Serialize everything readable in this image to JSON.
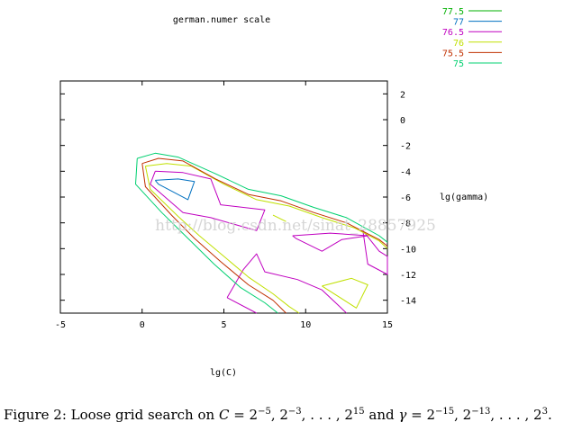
{
  "chart_data": {
    "type": "contour",
    "title": "german.numer scale",
    "xlabel": "lg(C)",
    "ylabel": "lg(gamma)",
    "xlim": [
      -5,
      15
    ],
    "ylim": [
      -15,
      3
    ],
    "x_ticks": [
      "-5",
      "0",
      "5",
      "10",
      "15"
    ],
    "y_ticks": [
      "2",
      "0",
      "-2",
      "-4",
      "-6",
      "-8",
      "-10",
      "-12",
      "-14"
    ],
    "legend_position": "top-right",
    "series": [
      {
        "name": "77.5",
        "color": "#00b000",
        "contours": []
      },
      {
        "name": "77",
        "color": "#0070c0",
        "contours": [
          [
            [
              0.8,
              -4.7
            ],
            [
              2.2,
              -4.6
            ],
            [
              3.2,
              -4.8
            ],
            [
              2.8,
              -6.2
            ],
            [
              1.0,
              -5.0
            ],
            [
              0.8,
              -4.7
            ]
          ]
        ]
      },
      {
        "name": "76.5",
        "color": "#c000c0",
        "contours": [
          [
            [
              0.8,
              -4.0
            ],
            [
              2.5,
              -4.1
            ],
            [
              4.2,
              -4.6
            ],
            [
              4.8,
              -6.6
            ],
            [
              7.5,
              -7.0
            ],
            [
              7.0,
              -8.6
            ],
            [
              4.2,
              -7.6
            ],
            [
              2.5,
              -7.2
            ],
            [
              0.5,
              -5.0
            ],
            [
              0.8,
              -4.0
            ]
          ],
          [
            [
              9.2,
              -9.0
            ],
            [
              11.5,
              -8.8
            ],
            [
              13.8,
              -9.0
            ],
            [
              12.2,
              -9.3
            ],
            [
              11.0,
              -10.2
            ],
            [
              9.4,
              -9.2
            ],
            [
              9.2,
              -9.0
            ]
          ],
          [
            [
              13.5,
              -8.6
            ],
            [
              14.5,
              -10.2
            ],
            [
              15.0,
              -10.6
            ],
            [
              15.0,
              -12.0
            ],
            [
              13.8,
              -11.2
            ],
            [
              13.5,
              -8.6
            ]
          ],
          [
            [
              5.2,
              -13.8
            ],
            [
              6.2,
              -11.6
            ],
            [
              7.0,
              -10.4
            ],
            [
              7.5,
              -11.8
            ],
            [
              9.5,
              -12.4
            ],
            [
              11.0,
              -13.2
            ],
            [
              12.0,
              -14.4
            ],
            [
              12.5,
              -15.0
            ]
          ],
          [
            [
              5.2,
              -13.8
            ],
            [
              7.0,
              -15.0
            ]
          ]
        ]
      },
      {
        "name": "76",
        "color": "#c0e000",
        "contours": [
          [
            [
              0.2,
              -3.6
            ],
            [
              1.5,
              -3.4
            ],
            [
              3.0,
              -3.6
            ],
            [
              5.0,
              -5.0
            ],
            [
              7.0,
              -6.2
            ],
            [
              9.0,
              -6.7
            ],
            [
              11.0,
              -7.6
            ],
            [
              13.0,
              -8.4
            ],
            [
              14.5,
              -9.4
            ],
            [
              15.0,
              -10.0
            ]
          ],
          [
            [
              0.2,
              -3.6
            ],
            [
              0.5,
              -5.4
            ],
            [
              2.2,
              -7.5
            ],
            [
              3.5,
              -9.0
            ],
            [
              5.0,
              -10.6
            ],
            [
              6.5,
              -12.2
            ],
            [
              8.0,
              -13.5
            ],
            [
              9.0,
              -14.5
            ],
            [
              9.6,
              -15.0
            ]
          ],
          [
            [
              11.0,
              -12.9
            ],
            [
              12.8,
              -12.3
            ],
            [
              13.8,
              -12.8
            ],
            [
              13.1,
              -14.6
            ],
            [
              11.0,
              -12.9
            ]
          ],
          [
            [
              8.0,
              -7.4
            ],
            [
              8.8,
              -7.9
            ]
          ]
        ]
      },
      {
        "name": "75.5",
        "color": "#c03000",
        "contours": [
          [
            [
              0.0,
              -3.4
            ],
            [
              1.0,
              -3.0
            ],
            [
              2.5,
              -3.2
            ],
            [
              4.5,
              -4.6
            ],
            [
              6.5,
              -5.8
            ],
            [
              8.5,
              -6.3
            ],
            [
              10.5,
              -7.2
            ],
            [
              12.5,
              -8.0
            ],
            [
              14.5,
              -9.3
            ],
            [
              15.0,
              -9.8
            ]
          ],
          [
            [
              0.0,
              -3.4
            ],
            [
              0.2,
              -5.2
            ],
            [
              1.8,
              -7.4
            ],
            [
              3.2,
              -9.2
            ],
            [
              4.8,
              -11.0
            ],
            [
              6.5,
              -12.8
            ],
            [
              8.0,
              -14.0
            ],
            [
              8.8,
              -15.0
            ]
          ]
        ]
      },
      {
        "name": "75",
        "color": "#00d070",
        "contours": [
          [
            [
              -0.3,
              -3.0
            ],
            [
              0.8,
              -2.6
            ],
            [
              2.2,
              -2.9
            ],
            [
              4.5,
              -4.2
            ],
            [
              6.5,
              -5.4
            ],
            [
              8.5,
              -5.9
            ],
            [
              10.5,
              -6.8
            ],
            [
              12.5,
              -7.6
            ],
            [
              14.5,
              -9.0
            ],
            [
              15.0,
              -9.5
            ]
          ],
          [
            [
              -0.3,
              -3.0
            ],
            [
              -0.4,
              -5.0
            ],
            [
              1.2,
              -7.2
            ],
            [
              2.8,
              -9.2
            ],
            [
              4.4,
              -11.2
            ],
            [
              6.0,
              -13.0
            ],
            [
              7.5,
              -14.2
            ],
            [
              8.3,
              -15.0
            ]
          ]
        ]
      }
    ]
  },
  "caption": {
    "prefix": "Figure 2: Loose grid search on ",
    "c_var": "C",
    "eq1": " = 2",
    "exp1": "−5",
    "mid1": ", 2",
    "exp2": "−3",
    "mid2": ", . . . , 2",
    "exp3": "15",
    "and": " and ",
    "gamma": "γ",
    "eq2": " = 2",
    "exp4": "−15",
    "mid3": ", 2",
    "exp5": "−13",
    "mid4": ", . . . , 2",
    "exp6": "3",
    "end": "."
  },
  "watermark": "http://blog.csdn.net/sinat_28857925"
}
